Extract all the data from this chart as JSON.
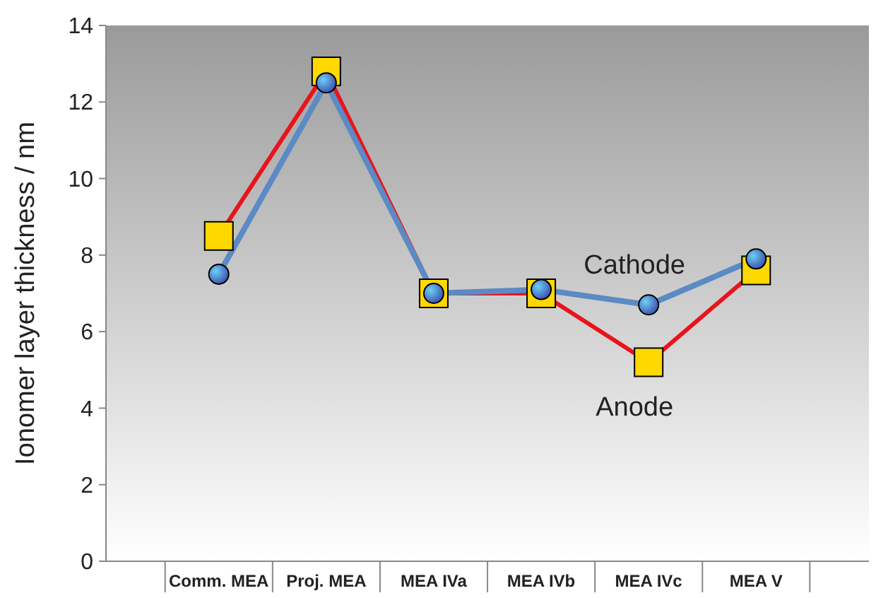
{
  "chart_data": {
    "type": "line",
    "ylabel": "Ionomer layer thickness / nm",
    "categories": [
      "Comm. MEA",
      "Proj. MEA",
      "MEA IVa",
      "MEA IVb",
      "MEA IVc",
      "MEA V"
    ],
    "series": [
      {
        "name": "Anode",
        "color": "#e8141c",
        "marker": "square",
        "values": [
          8.5,
          12.8,
          7.0,
          7.0,
          5.2,
          7.6
        ]
      },
      {
        "name": "Cathode",
        "color": "#5b8ac4",
        "marker": "circle",
        "values": [
          7.5,
          12.5,
          7.0,
          7.1,
          6.7,
          7.9
        ]
      }
    ],
    "ylim": [
      0,
      14
    ],
    "yticks": [
      0,
      2,
      4,
      6,
      8,
      10,
      12,
      14
    ],
    "grid": false,
    "legend": false
  }
}
